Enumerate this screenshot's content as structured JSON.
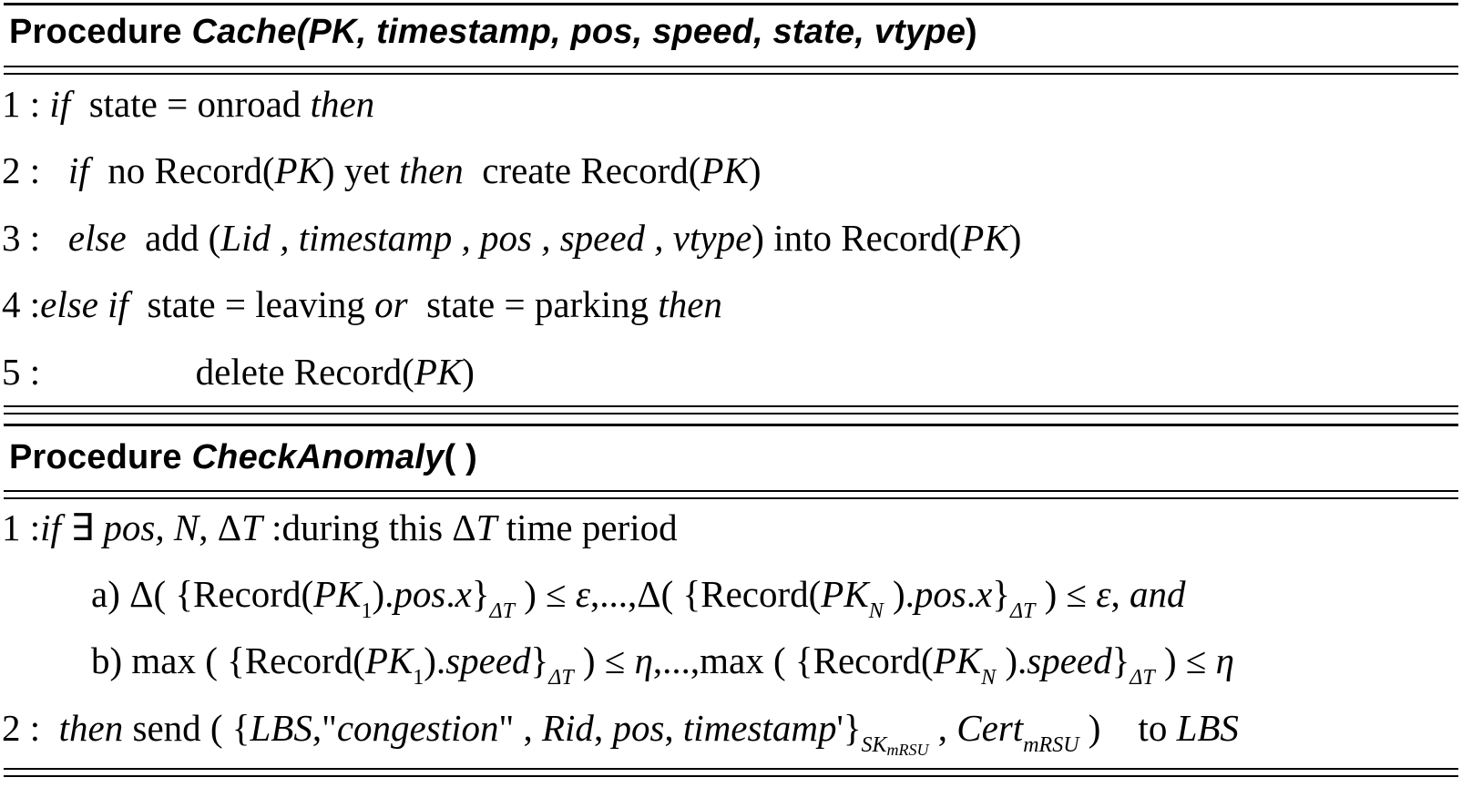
{
  "procedures": [
    {
      "keyword": "Procedure",
      "name": "Cache(PK, timestamp, pos, speed, state, vtype",
      "close": ")",
      "lines": [
        {
          "num": "1 :",
          "if": "if",
          "a": "state = onroad",
          "then": "then"
        },
        {
          "num": "2 :",
          "if": "if",
          "a": "no Record(",
          "pk": "PK",
          "b": ") yet",
          "then": "then",
          "c": "create Record(",
          "pk2": "PK",
          "d": ")"
        },
        {
          "num": "3 :",
          "else": "else",
          "a": "add  (",
          "args": "Lid , timestamp , pos , speed , vtype",
          "b": ") into Record(",
          "pk": "PK",
          "c": ")"
        },
        {
          "num": "4 :",
          "elseif": "else if",
          "a": "state = leaving",
          "or": "or",
          "b": "state = parking",
          "then": "then"
        },
        {
          "num": "5 :",
          "a": "delete Record(",
          "pk": "PK",
          "b": ")"
        }
      ]
    },
    {
      "keyword": "Procedure",
      "name": "CheckAnomaly",
      "close": "( )",
      "lines": [
        {
          "num": "1 :",
          "if": "if",
          "a": "∃",
          "b": "pos, ",
          "n": "N",
          "c": ", Δ",
          "t": "T",
          "d": " :during  this Δ",
          "t2": "T",
          "e": "  time period"
        },
        {
          "a": "a) Δ( {Record(",
          "pk": "PK",
          "s1": "1",
          "b": ").",
          "pos": "pos",
          "c": ".",
          "x": "x",
          "d": "}",
          "dt": "ΔT",
          "e": " ) ≤ ",
          "eps": "ε",
          "f": ",...,Δ( {Record(",
          "pk2": "PK",
          "sn": "N",
          "g": " ).",
          "pos2": "pos",
          "h": ".",
          "x2": "x",
          "i": "}",
          "dt2": "ΔT",
          "j": " ) ≤ ",
          "eps2": "ε",
          "k": ", ",
          "and": "and"
        },
        {
          "a": "b) max ( {Record(",
          "pk": "PK",
          "s1": "1",
          "b": ").",
          "speed": "speed",
          "c": "}",
          "dt": "ΔT",
          "d": " ) ≤ ",
          "eta": "η",
          "e": ",...,max ( {Record(",
          "pk2": "PK",
          "sn": "N",
          "f": " ).",
          "speed2": "speed",
          "g": "}",
          "dt2": "ΔT",
          "h": " ) ≤ ",
          "eta2": "η"
        },
        {
          "num": "2 :",
          "then": "then",
          "a": " send ( {",
          "lbs": "LBS",
          "b": ",\"",
          "cong": "congestion",
          "c": "\" , ",
          "rid": "Rid",
          "d": ", ",
          "pos": "pos",
          "e": ", ",
          "ts": "timestamp",
          "f": "'}",
          "sk": "SK",
          "skm": "mRSU",
          "g": " , ",
          "cert": "Cert",
          "certm": "mRSU",
          "h": " )    to ",
          "lbs2": "LBS"
        }
      ]
    }
  ]
}
